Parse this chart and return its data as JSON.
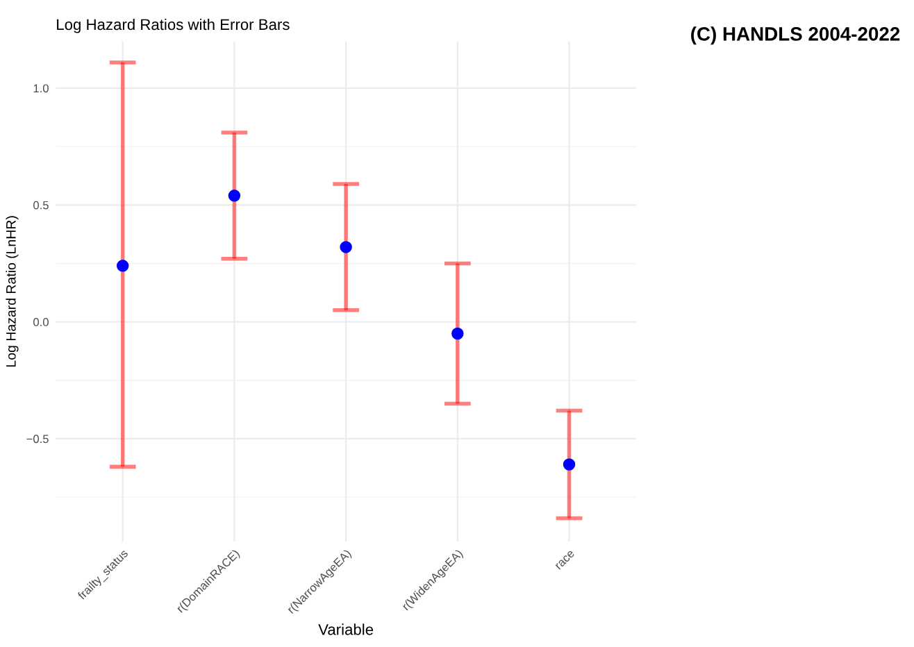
{
  "chart_data": {
    "type": "scatter",
    "title": "Log Hazard Ratios with Error Bars",
    "xlabel": "Variable",
    "ylabel": "Log Hazard Ratio (LnHR)",
    "annotations": [
      "(C) HANDLS 2004-2022"
    ],
    "categories": [
      "frailty_status",
      "r(DomainRACE)",
      "r(NarrowAgeEA)",
      "r(WidenAgeEA)",
      "race"
    ],
    "series": [
      {
        "color": "#0000ff",
        "values": [
          0.24,
          0.54,
          0.32,
          -0.05,
          -0.61
        ],
        "errors": [
          [
            -0.62,
            1.11
          ],
          [
            0.27,
            0.81
          ],
          [
            0.05,
            0.59
          ],
          [
            -0.35,
            0.25
          ],
          [
            -0.84,
            -0.38
          ]
        ]
      }
    ],
    "ylim": [
      -0.94,
      1.2
    ],
    "yticks": [
      {
        "value": -0.5,
        "label": "−0.5"
      },
      {
        "value": 0,
        "label": "0.0"
      },
      {
        "value": 0.5,
        "label": "0.5"
      },
      {
        "value": 1,
        "label": "1.0"
      }
    ],
    "grid": true,
    "marker": "circle"
  }
}
